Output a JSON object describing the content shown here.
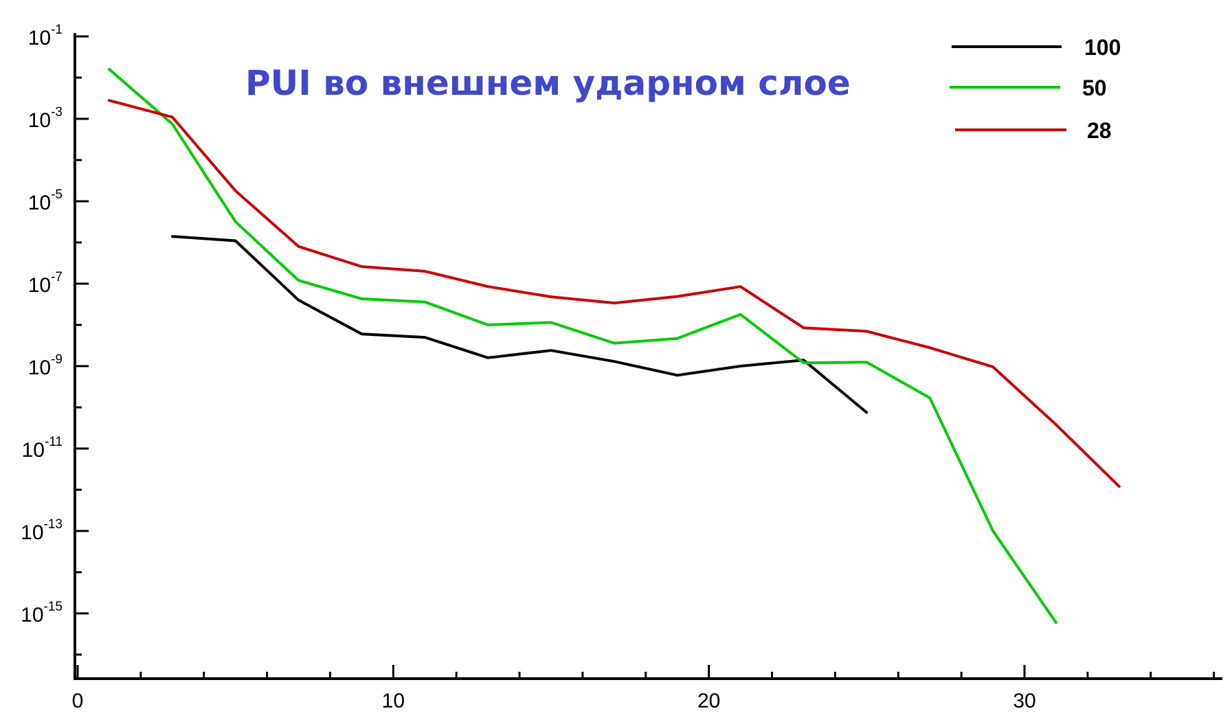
{
  "chart_data": {
    "type": "line",
    "title": "PUI во внешнем ударном слое",
    "title_color": "#3f48cc",
    "xlabel": "",
    "ylabel": "",
    "xlim": [
      0,
      36.5
    ],
    "ylim_exponent": [
      -16.5,
      -1
    ],
    "y_scale": "log",
    "grid": false,
    "legend_position": "top-right",
    "x_ticks": [
      {
        "value": 0,
        "label": "0"
      },
      {
        "value": 10,
        "label": "10"
      },
      {
        "value": 20,
        "label": "20"
      },
      {
        "value": 30,
        "label": "30"
      }
    ],
    "y_ticks": [
      {
        "exponent": -1,
        "base": "10",
        "exp_label": "-1"
      },
      {
        "exponent": -3,
        "base": "10",
        "exp_label": "-3"
      },
      {
        "exponent": -5,
        "base": "10",
        "exp_label": "-5"
      },
      {
        "exponent": -7,
        "base": "10",
        "exp_label": "-7"
      },
      {
        "exponent": -9,
        "base": "10",
        "exp_label": "-9"
      },
      {
        "exponent": -11,
        "base": "10",
        "exp_label": "-11"
      },
      {
        "exponent": -13,
        "base": "10",
        "exp_label": "-13"
      },
      {
        "exponent": -15,
        "base": "10",
        "exp_label": "-15"
      }
    ],
    "series": [
      {
        "name": "100",
        "color": "#000000",
        "x": [
          3,
          5,
          7,
          9,
          11,
          13,
          15,
          17,
          19,
          21,
          23,
          25
        ],
        "y": [
          1.4e-06,
          1.1e-06,
          4e-08,
          6e-09,
          5e-09,
          1.6e-09,
          2.4e-09,
          1.3e-09,
          6e-10,
          1e-09,
          1.4e-09,
          7.5e-11
        ]
      },
      {
        "name": "50",
        "color": "#00cc00",
        "x": [
          1,
          3,
          5,
          7,
          9,
          11,
          13,
          15,
          17,
          19,
          21,
          23,
          25,
          27,
          29,
          31
        ],
        "y": [
          0.016,
          0.00075,
          3.2e-06,
          1.2e-07,
          4.3e-08,
          3.6e-08,
          1e-08,
          1.15e-08,
          3.6e-09,
          4.7e-09,
          1.8e-08,
          1.2e-09,
          1.25e-09,
          1.7e-10,
          1e-13,
          6e-16
        ]
      },
      {
        "name": "28",
        "color": "#cc0000",
        "x": [
          1,
          3,
          5,
          7,
          9,
          11,
          13,
          15,
          17,
          19,
          21,
          23,
          25,
          27,
          29,
          31,
          33
        ],
        "y": [
          0.0028,
          0.0011,
          1.8e-05,
          8e-07,
          2.6e-07,
          2e-07,
          8.5e-08,
          4.8e-08,
          3.4e-08,
          4.9e-08,
          8.5e-08,
          8.5e-09,
          7e-09,
          2.8e-09,
          9.6e-10,
          3.8e-11,
          1.2e-12
        ]
      }
    ]
  }
}
